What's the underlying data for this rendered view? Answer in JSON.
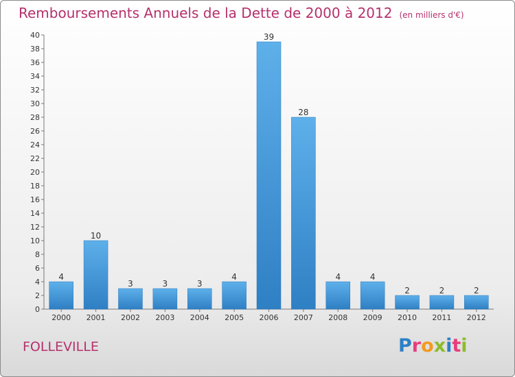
{
  "header": {
    "title": "Remboursements Annuels de la Dette de 2000 à 2012",
    "unit": "(en milliers d'€)"
  },
  "place": "FOLLEVILLE",
  "logo": {
    "text": "Proxiti"
  },
  "colors": {
    "bar": "#3a8fd6",
    "bar_light": "#5eb0ea",
    "title": "#b5306c"
  },
  "chart_data": {
    "type": "bar",
    "title": "Remboursements Annuels de la Dette de 2000 à 2012",
    "subtitle": "(en milliers d'€)",
    "xlabel": "",
    "ylabel": "",
    "categories": [
      "2000",
      "2001",
      "2002",
      "2003",
      "2004",
      "2005",
      "2006",
      "2007",
      "2008",
      "2009",
      "2010",
      "2011",
      "2012"
    ],
    "values": [
      4,
      10,
      3,
      3,
      3,
      4,
      39,
      28,
      4,
      4,
      2,
      2,
      2
    ],
    "ylim": [
      0,
      40
    ],
    "yticks": [
      0,
      2,
      4,
      6,
      8,
      10,
      12,
      14,
      16,
      18,
      20,
      22,
      24,
      26,
      28,
      30,
      32,
      34,
      36,
      38,
      40
    ],
    "grid": false,
    "data_labels": true
  }
}
